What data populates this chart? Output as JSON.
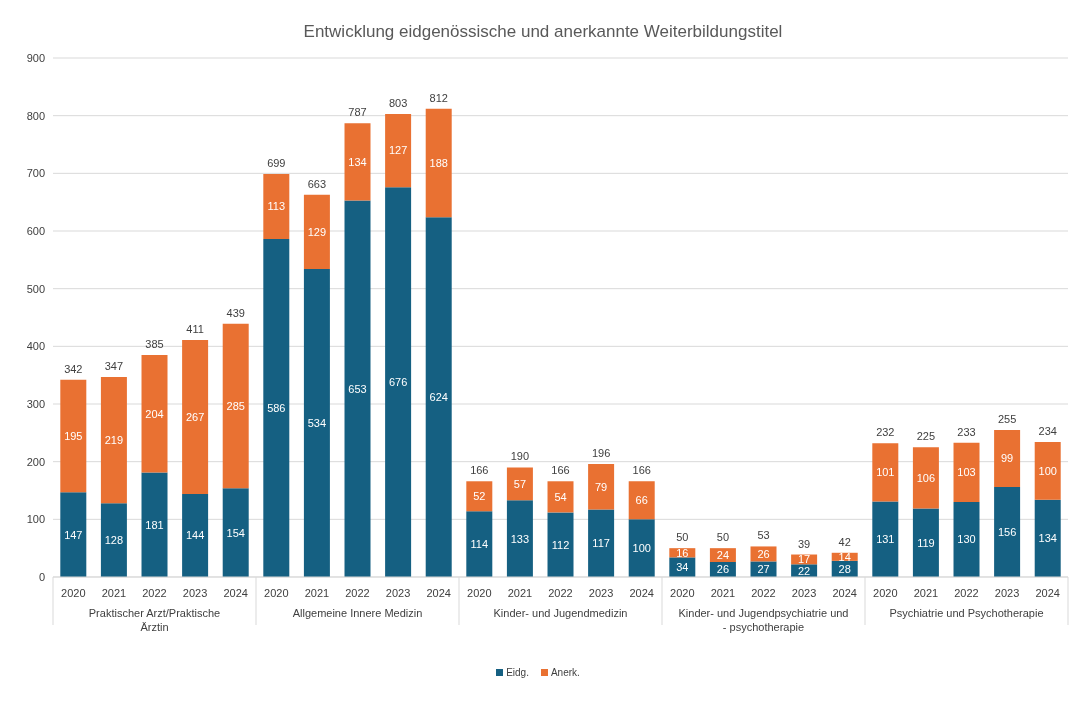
{
  "chart_data": {
    "type": "bar",
    "title": "Entwicklung eidgenössische und anerkannte Weiterbildungstitel",
    "categories": [
      "2020",
      "2021",
      "2022",
      "2023",
      "2024",
      "2020",
      "2021",
      "2022",
      "2023",
      "2024",
      "2020",
      "2021",
      "2022",
      "2023",
      "2024",
      "2020",
      "2021",
      "2022",
      "2023",
      "2024",
      "2020",
      "2021",
      "2022",
      "2023",
      "2024"
    ],
    "series": [
      {
        "name": "Eidg.",
        "color": "#156082",
        "values": [
          147,
          128,
          181,
          144,
          154,
          586,
          534,
          653,
          676,
          624,
          114,
          133,
          112,
          117,
          100,
          34,
          26,
          27,
          22,
          28,
          131,
          119,
          130,
          156,
          134
        ]
      },
      {
        "name": "Anerk.",
        "color": "#e97132",
        "values": [
          195,
          219,
          204,
          267,
          285,
          113,
          129,
          134,
          127,
          188,
          52,
          57,
          54,
          79,
          66,
          16,
          24,
          26,
          17,
          14,
          101,
          106,
          103,
          99,
          100
        ]
      }
    ],
    "stacked": true,
    "totals": [
      "342",
      "347",
      "385",
      "411",
      "439",
      "699",
      "663",
      "787",
      "803",
      "812",
      "166",
      "190",
      "166",
      "196",
      "166",
      "50",
      "50",
      "53",
      "39",
      "42",
      "232",
      "225",
      "233",
      "255",
      "234"
    ],
    "data_labels": true,
    "annotations": [
      "Praktischer Arzt/Praktische Ärztin",
      "Allgemeine Innere Medizin",
      "Kinder- und Jugendmedizin",
      "Kinder- und Jugendpsychiatrie und - psychotherapie",
      "Psychiatrie und Psychotherapie"
    ],
    "ylim": [
      0,
      900
    ],
    "yticks": [
      0,
      100,
      200,
      300,
      400,
      500,
      600,
      700,
      800,
      900
    ],
    "grid": "y",
    "legend": "bottom"
  }
}
